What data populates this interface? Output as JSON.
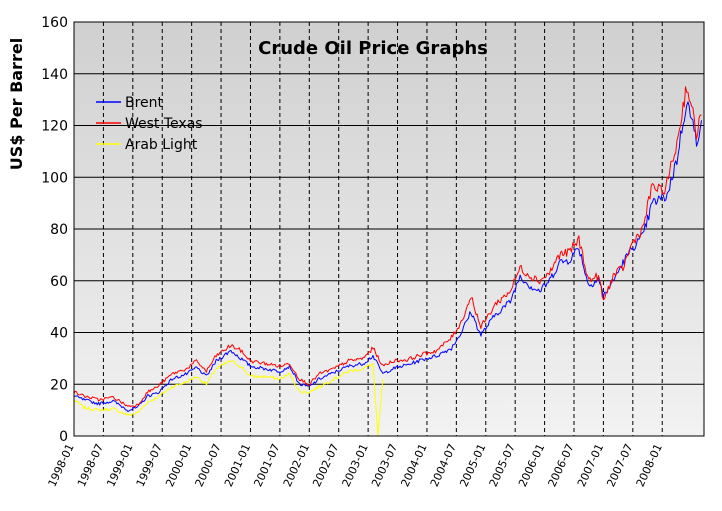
{
  "chart_data": {
    "type": "line",
    "title": "Crude Oil Price Graphs",
    "xlabel": "",
    "ylabel": "US$ Per Barrel",
    "ylim": [
      0,
      160
    ],
    "yticks": [
      "0",
      "20",
      "40",
      "60",
      "80",
      "100",
      "120",
      "140",
      "160"
    ],
    "xlim": [
      1998.0,
      2008.71
    ],
    "xticks": [
      "1998-01",
      "1998-07",
      "1999-01",
      "1999-07",
      "2000-01",
      "2000-07",
      "2001-01",
      "2001-07",
      "2002-01",
      "2002-07",
      "2003-01",
      "2003-07",
      "2004-01",
      "2004-07",
      "2005-01",
      "2005-07",
      "2006-01",
      "2006-07",
      "2007-01",
      "2007-07",
      "2008-01"
    ],
    "grid": "on",
    "legend_position": "top-left",
    "colors": {
      "plot_bg_top": "#d0d0d0",
      "plot_bg_bottom": "#f2f2f2",
      "gridline": "#000000",
      "Brent": "#0000ff",
      "West Texas": "#ff0000",
      "Arab Light": "#ffff00"
    },
    "series": [
      {
        "name": "Brent",
        "x": [
          "1998-01",
          "1998-03",
          "1998-06",
          "1998-09",
          "1998-12",
          "1999-02",
          "1999-04",
          "1999-06",
          "1999-09",
          "1999-12",
          "2000-02",
          "2000-04",
          "2000-06",
          "2000-09",
          "2000-11",
          "2001-01",
          "2001-04",
          "2001-07",
          "2001-09",
          "2001-11",
          "2002-01",
          "2002-03",
          "2002-06",
          "2002-09",
          "2002-12",
          "2003-02",
          "2003-04",
          "2003-06",
          "2003-09",
          "2003-12",
          "2004-03",
          "2004-06",
          "2004-08",
          "2004-10",
          "2004-12",
          "2005-03",
          "2005-06",
          "2005-08",
          "2005-10",
          "2005-12",
          "2006-02",
          "2006-04",
          "2006-06",
          "2006-08",
          "2006-10",
          "2006-12",
          "2007-01",
          "2007-03",
          "2007-05",
          "2007-07",
          "2007-09",
          "2007-11",
          "2008-01",
          "2008-02",
          "2008-04",
          "2008-06",
          "2008-08",
          "2008-09"
        ],
        "values": [
          15.5,
          14,
          12.5,
          13.5,
          10,
          11,
          15.5,
          16.5,
          22,
          24,
          26.5,
          23,
          29,
          33,
          30,
          27,
          26,
          25,
          27,
          20,
          19,
          22,
          24.5,
          27,
          28,
          31,
          24,
          26,
          27.5,
          29.5,
          31,
          34,
          40,
          48,
          39,
          47,
          52,
          62,
          58,
          56,
          60,
          67,
          68,
          73,
          58,
          61,
          54,
          60,
          67,
          73,
          77,
          90,
          92,
          93,
          107,
          130,
          114,
          122
        ]
      },
      {
        "name": "West Texas",
        "x": [
          "1998-01",
          "1998-03",
          "1998-06",
          "1998-09",
          "1998-12",
          "1999-02",
          "1999-04",
          "1999-06",
          "1999-09",
          "1999-12",
          "2000-02",
          "2000-04",
          "2000-06",
          "2000-09",
          "2000-11",
          "2001-01",
          "2001-04",
          "2001-07",
          "2001-09",
          "2001-11",
          "2002-01",
          "2002-03",
          "2002-06",
          "2002-09",
          "2002-12",
          "2003-02",
          "2003-04",
          "2003-06",
          "2003-09",
          "2003-12",
          "2004-03",
          "2004-06",
          "2004-08",
          "2004-10",
          "2004-12",
          "2005-03",
          "2005-06",
          "2005-08",
          "2005-10",
          "2005-12",
          "2006-02",
          "2006-04",
          "2006-06",
          "2006-08",
          "2006-10",
          "2006-12",
          "2007-01",
          "2007-03",
          "2007-05",
          "2007-07",
          "2007-09",
          "2007-11",
          "2008-01",
          "2008-02",
          "2008-04",
          "2008-06",
          "2008-08",
          "2008-09"
        ],
        "values": [
          17,
          15.5,
          14,
          15,
          11.5,
          12,
          17,
          19,
          24,
          26,
          29,
          25,
          31,
          35,
          33,
          29,
          28,
          27,
          28,
          22,
          20,
          24,
          26,
          29,
          30,
          34,
          27,
          29,
          29.5,
          31.5,
          33,
          38,
          44,
          54,
          42,
          51,
          56,
          65,
          62,
          60,
          63,
          70,
          71,
          76,
          60,
          62,
          52,
          62,
          65,
          75,
          80,
          97,
          94,
          98,
          113,
          136,
          117,
          124
        ]
      },
      {
        "name": "Arab Light",
        "x": [
          "1998-01",
          "1998-03",
          "1998-06",
          "1998-09",
          "1998-12",
          "1999-02",
          "1999-04",
          "1999-06",
          "1999-09",
          "1999-12",
          "2000-02",
          "2000-04",
          "2000-06",
          "2000-09",
          "2000-11",
          "2001-01",
          "2001-04",
          "2001-07",
          "2001-09",
          "2001-11",
          "2002-01",
          "2002-03",
          "2002-06",
          "2002-09",
          "2002-12",
          "2003-02",
          "2003-03",
          "2003-04"
        ],
        "values": [
          14,
          11,
          10,
          10.5,
          8,
          9,
          13,
          15,
          19,
          21,
          23,
          20,
          26,
          29,
          27,
          23,
          23,
          22,
          24,
          17,
          17,
          19,
          22,
          25,
          26,
          28,
          0,
          22
        ]
      }
    ]
  }
}
